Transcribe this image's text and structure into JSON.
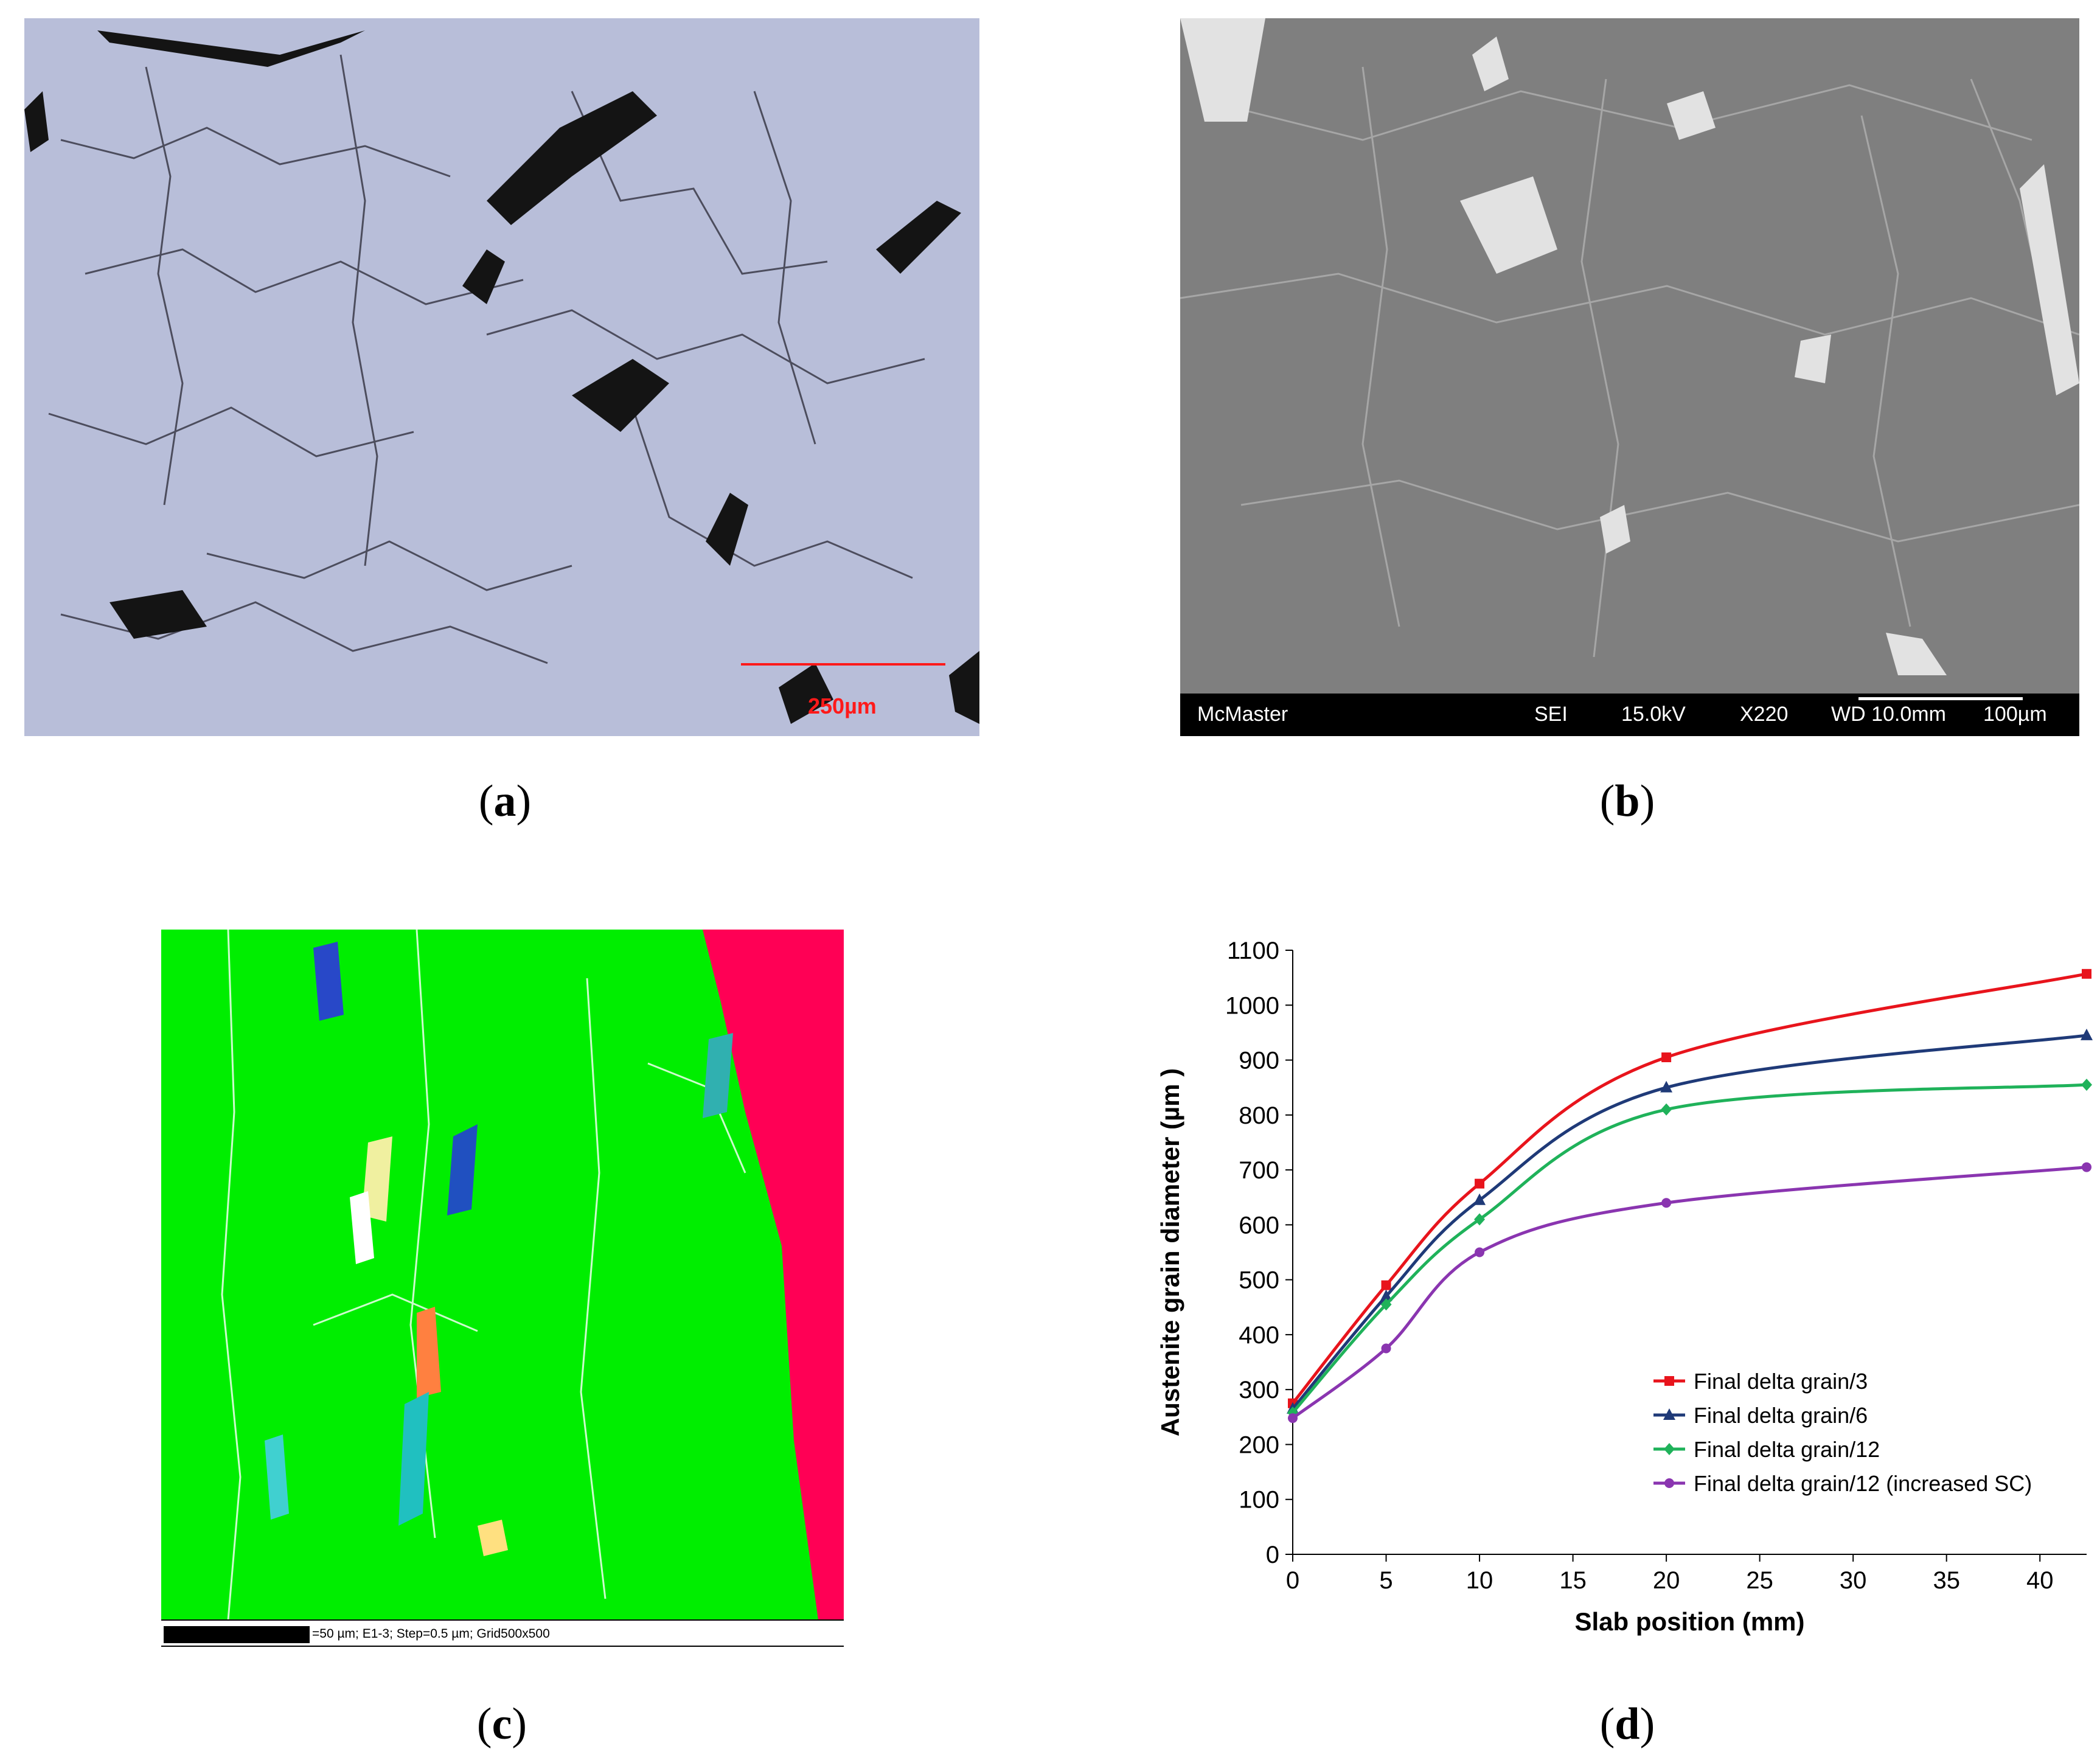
{
  "panel_a": {
    "caption": "a",
    "scale_label": "250µm",
    "scale_color": "#ff1a1a"
  },
  "panel_b": {
    "caption": "b",
    "info_bar": {
      "brand": "McMaster",
      "mode": "SEI",
      "voltage": "15.0kV",
      "magnification": "X220",
      "working_distance": "WD 10.0mm",
      "scale": "100µm"
    }
  },
  "panel_c": {
    "caption": "c",
    "scale_text": "=50 µm; E1-3; Step=0.5 µm; Grid500x500",
    "phase_colors": {
      "primary": "#00ee00",
      "secondary": "#ff0055"
    }
  },
  "panel_d": {
    "caption": "d"
  },
  "chart_data": {
    "type": "line",
    "title": "",
    "xlabel": "Slab position (mm)",
    "ylabel": "Austenite grain diameter (µm )",
    "xlim": [
      0,
      42.5
    ],
    "ylim": [
      0,
      1100
    ],
    "xticks": [
      0,
      5,
      10,
      15,
      20,
      25,
      30,
      35,
      40
    ],
    "yticks": [
      0,
      100,
      200,
      300,
      400,
      500,
      600,
      700,
      800,
      900,
      1000,
      1100
    ],
    "grid": false,
    "legend_position": "bottom-right",
    "x": [
      0,
      5,
      10,
      20,
      42.5
    ],
    "series": [
      {
        "name": "Final delta grain/3",
        "values": [
          275,
          490,
          675,
          905,
          1057
        ],
        "color": "#e8141c",
        "marker": "square"
      },
      {
        "name": "Final delta grain/6",
        "values": [
          265,
          470,
          645,
          850,
          945
        ],
        "color": "#1f3a78",
        "marker": "triangle"
      },
      {
        "name": "Final delta grain/12",
        "values": [
          258,
          455,
          610,
          810,
          855
        ],
        "color": "#1fb25a",
        "marker": "diamond"
      },
      {
        "name": "Final delta grain/12 (increased SC)",
        "values": [
          248,
          375,
          550,
          640,
          705
        ],
        "color": "#8a35b0",
        "marker": "circle"
      }
    ]
  }
}
